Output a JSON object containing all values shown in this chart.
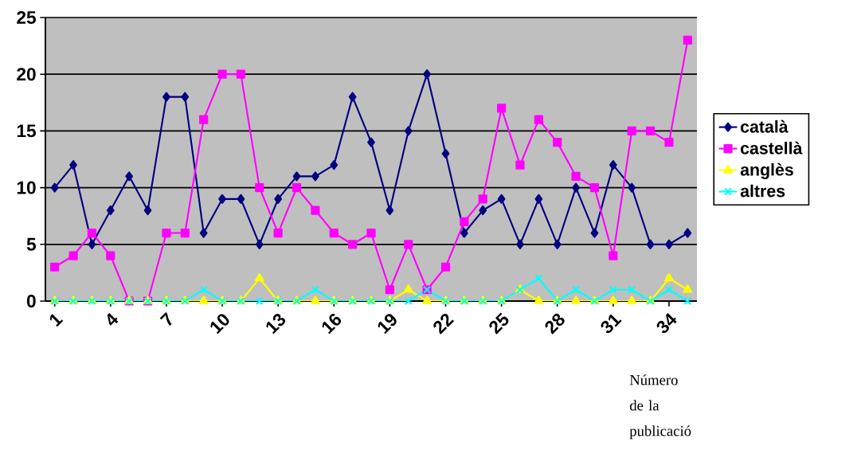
{
  "chart_data": {
    "type": "line",
    "annotations": [
      "Número de la publicació"
    ],
    "categories": [
      "1",
      null,
      null,
      "4",
      null,
      null,
      "7",
      null,
      null,
      "10",
      null,
      null,
      "13",
      null,
      null,
      "16",
      null,
      null,
      "19",
      null,
      null,
      "22",
      null,
      null,
      "25",
      null,
      null,
      "28",
      null,
      null,
      "31",
      null,
      null,
      "34",
      null
    ],
    "series": [
      {
        "name": "català",
        "color": "#000080",
        "marker": "diamond",
        "values": [
          10,
          12,
          5,
          8,
          11,
          8,
          18,
          18,
          6,
          9,
          9,
          5,
          9,
          11,
          11,
          12,
          18,
          14,
          8,
          15,
          20,
          13,
          6,
          8,
          9,
          5,
          9,
          5,
          10,
          6,
          12,
          10,
          5,
          5,
          6
        ]
      },
      {
        "name": "castellà",
        "color": "#ff00ff",
        "marker": "square",
        "values": [
          3,
          4,
          6,
          4,
          0,
          0,
          6,
          6,
          16,
          20,
          20,
          10,
          6,
          10,
          8,
          6,
          5,
          6,
          1,
          5,
          1,
          3,
          7,
          9,
          17,
          12,
          16,
          14,
          11,
          10,
          4,
          15,
          15,
          14,
          23
        ]
      },
      {
        "name": "anglès",
        "color": "#ffff00",
        "marker": "triangle",
        "values": [
          0,
          0,
          0,
          0,
          0,
          0,
          0,
          0,
          0,
          0,
          0,
          2,
          0,
          0,
          0,
          0,
          0,
          0,
          0,
          1,
          0,
          0,
          0,
          0,
          0,
          1,
          0,
          0,
          0,
          0,
          0,
          0,
          0,
          2,
          1
        ]
      },
      {
        "name": "altres",
        "color": "#00ffff",
        "marker": "cross",
        "values": [
          0,
          0,
          0,
          0,
          0,
          0,
          0,
          0,
          1,
          0,
          0,
          0,
          0,
          0,
          1,
          0,
          0,
          0,
          0,
          0,
          1,
          0,
          0,
          0,
          0,
          1,
          2,
          0,
          1,
          0,
          1,
          1,
          0,
          1,
          0
        ]
      }
    ],
    "ylim": [
      0,
      25
    ],
    "yticks": [
      0,
      5,
      10,
      15,
      20,
      25
    ],
    "grid": "y",
    "legend": "right"
  }
}
